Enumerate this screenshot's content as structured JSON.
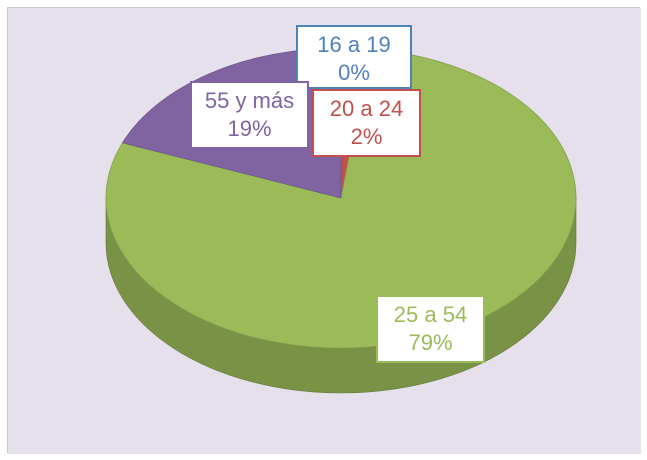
{
  "chart_data": {
    "type": "pie",
    "three_d": true,
    "slices": [
      {
        "category": "16 a 19",
        "value": 0,
        "percent_label": "0%",
        "color": "#4f81bd"
      },
      {
        "category": "20 a 24",
        "value": 2,
        "percent_label": "2%",
        "color": "#c0504d"
      },
      {
        "category": "25 a 54",
        "value": 79,
        "percent_label": "79%",
        "color": "#9bbb59"
      },
      {
        "category": "55 y más",
        "value": 19,
        "percent_label": "19%",
        "color": "#8064a2"
      }
    ],
    "legend": "none",
    "background_color": "#e5e0ec"
  }
}
